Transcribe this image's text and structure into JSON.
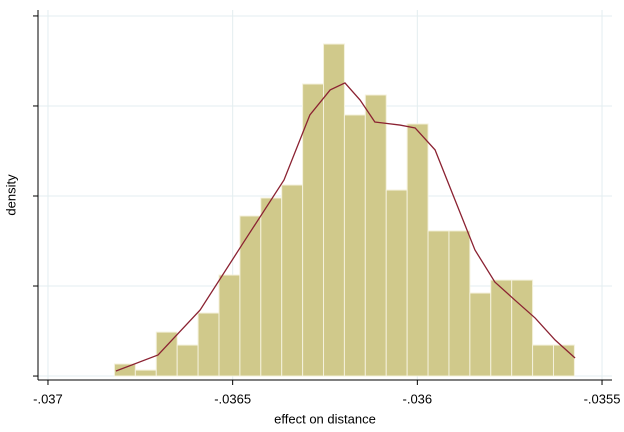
{
  "chart_data": {
    "type": "histogram",
    "xlabel": "effect on distance",
    "ylabel": "density",
    "bins": [
      -0.03682,
      -0.0367634,
      -0.0367068,
      -0.0366502,
      -0.0365936,
      -0.036537,
      -0.0364804,
      -0.0364238,
      -0.0363672,
      -0.0363106,
      -0.036254,
      -0.0361974,
      -0.0361408,
      -0.0360842,
      -0.0360276,
      -0.035971,
      -0.0359144,
      -0.0358578,
      -0.0358012,
      -0.0357446,
      -0.035688,
      -0.0356314,
      -0.0355748
    ],
    "values": [
      67,
      33,
      244,
      172,
      350,
      561,
      889,
      989,
      1061,
      1622,
      1844,
      1450,
      1561,
      1033,
      1400,
      806,
      806,
      461,
      533,
      533,
      172,
      172
    ],
    "color": "#d0c98b",
    "overlay": {
      "type": "line",
      "color": "#8b2232",
      "x": [
        -0.036816,
        -0.036702,
        -0.036588,
        -0.036475,
        -0.036361,
        -0.036291,
        -0.036236,
        -0.036196,
        -0.036155,
        -0.036115,
        -0.036047,
        -0.036006,
        -0.035952,
        -0.035898,
        -0.035844,
        -0.03579,
        -0.035736,
        -0.035681,
        -0.035627,
        -0.035573
      ],
      "values": [
        28,
        117,
        367,
        728,
        1089,
        1450,
        1589,
        1628,
        1533,
        1411,
        1394,
        1378,
        1256,
        978,
        700,
        522,
        422,
        322,
        200,
        100
      ]
    },
    "xlim": [
      -0.037027,
      -0.035473
    ],
    "xticks": [
      {
        "value": -0.037,
        "label": "-.037"
      },
      {
        "value": -0.0365,
        "label": "-.0365"
      },
      {
        "value": -0.036,
        "label": "-.036"
      },
      {
        "value": -0.0355,
        "label": "-.0355"
      }
    ],
    "ylim": [
      -22,
      2033
    ],
    "yticks": [
      0,
      500,
      1000,
      1500,
      2000
    ],
    "grid": true
  }
}
